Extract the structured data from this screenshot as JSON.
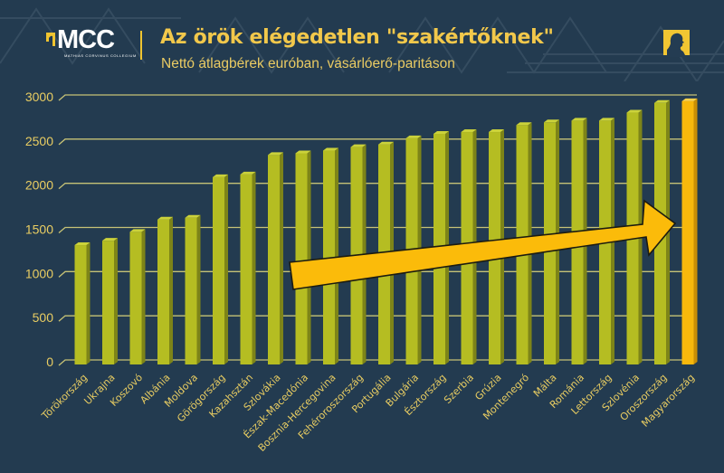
{
  "header": {
    "logo_text": "MCC",
    "logo_subtitle": "MATHIAS CORVINUS COLLEGIUM",
    "title": "Az örök elégedetlen \"szakértőknek\"",
    "subtitle": "Nettó átlagbérek euróban, vásárlóerő-paritáson",
    "portrait_icon": "portrait-silhouette-icon"
  },
  "colors": {
    "background": "#233b50",
    "bar": "#b5bd22",
    "highlight_bar": "#f8b80c",
    "arrow": "#fbbb0a",
    "gridline": "#d8d27a",
    "text": "#e9cd62"
  },
  "chart_data": {
    "type": "bar",
    "title": "Az örök elégedetlen \"szakértőknek\"",
    "subtitle": "Nettó átlagbérek euróban, vásárlóerő-paritáson",
    "xlabel": "",
    "ylabel": "",
    "ylim": [
      0,
      3000
    ],
    "yticks": [
      0,
      500,
      1000,
      1500,
      2000,
      2500,
      3000
    ],
    "grid": true,
    "legend": "none",
    "categories": [
      "Törökország",
      "Ukrajna",
      "Koszovó",
      "Albánia",
      "Moldova",
      "Görögország",
      "Kazahsztán",
      "Szlovákia",
      "Észak-Macedónia",
      "Bosznia-Hercegovina",
      "Fehéroroszország",
      "Portugália",
      "Bulgária",
      "Észtország",
      "Szerbia",
      "Grúzia",
      "Montenegró",
      "Málta",
      "Románia",
      "Lettország",
      "Szlovénia",
      "Oroszország",
      "Magyarország"
    ],
    "values": [
      1300,
      1350,
      1450,
      1590,
      1610,
      2070,
      2100,
      2320,
      2340,
      2370,
      2410,
      2440,
      2510,
      2560,
      2580,
      2580,
      2660,
      2690,
      2710,
      2710,
      2800,
      2910,
      2930
    ],
    "highlight": "Magyarország",
    "annotation": "upward arrow pointing to Magyarország"
  }
}
